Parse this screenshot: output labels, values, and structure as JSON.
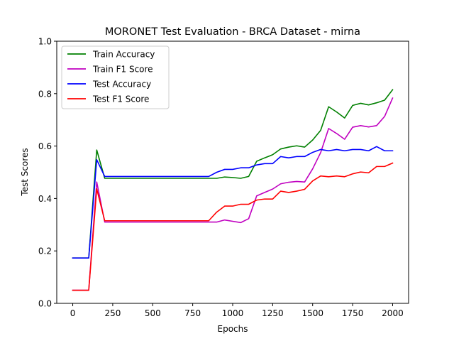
{
  "chart_data": {
    "type": "line",
    "title": "MORONET Test Evaluation - BRCA Dataset - mirna",
    "xlabel": "Epochs",
    "ylabel": "Test Scores",
    "xlim": [
      -100,
      2100
    ],
    "ylim": [
      0.0,
      1.0
    ],
    "xticks": [
      0,
      250,
      500,
      750,
      1000,
      1250,
      1500,
      1750,
      2000
    ],
    "yticks": [
      0.0,
      0.2,
      0.4,
      0.6,
      0.8,
      1.0
    ],
    "xtick_labels": [
      "0",
      "250",
      "500",
      "750",
      "1000",
      "1250",
      "1500",
      "1750",
      "2000"
    ],
    "ytick_labels": [
      "0.0",
      "0.2",
      "0.4",
      "0.6",
      "0.8",
      "1.0"
    ],
    "grid": false,
    "legend_position": "top-left",
    "x": [
      0,
      50,
      100,
      150,
      200,
      250,
      300,
      350,
      400,
      450,
      500,
      550,
      600,
      650,
      700,
      750,
      800,
      850,
      900,
      950,
      1000,
      1050,
      1100,
      1150,
      1200,
      1250,
      1300,
      1350,
      1400,
      1450,
      1500,
      1550,
      1600,
      1650,
      1700,
      1750,
      1800,
      1850,
      1900,
      1950,
      2000
    ],
    "series": [
      {
        "name": "Train Accuracy",
        "color": "#008000",
        "values": [
          0.173,
          0.173,
          0.173,
          0.585,
          0.477,
          0.477,
          0.477,
          0.477,
          0.477,
          0.477,
          0.477,
          0.477,
          0.477,
          0.477,
          0.477,
          0.477,
          0.477,
          0.477,
          0.477,
          0.482,
          0.48,
          0.477,
          0.484,
          0.542,
          0.555,
          0.567,
          0.589,
          0.596,
          0.601,
          0.596,
          0.623,
          0.66,
          0.75,
          0.73,
          0.707,
          0.755,
          0.763,
          0.757,
          0.765,
          0.775,
          0.815
        ]
      },
      {
        "name": "Train F1 Score",
        "color": "#c000c0",
        "values": [
          0.05,
          0.05,
          0.05,
          0.463,
          0.31,
          0.31,
          0.31,
          0.31,
          0.31,
          0.31,
          0.31,
          0.31,
          0.31,
          0.31,
          0.31,
          0.31,
          0.31,
          0.31,
          0.31,
          0.318,
          0.313,
          0.308,
          0.323,
          0.41,
          0.423,
          0.436,
          0.456,
          0.462,
          0.465,
          0.463,
          0.513,
          0.575,
          0.667,
          0.648,
          0.626,
          0.672,
          0.678,
          0.673,
          0.678,
          0.713,
          0.783
        ]
      },
      {
        "name": "Test Accuracy",
        "color": "#0000ff",
        "values": [
          0.173,
          0.173,
          0.173,
          0.548,
          0.484,
          0.484,
          0.484,
          0.484,
          0.484,
          0.484,
          0.484,
          0.484,
          0.484,
          0.484,
          0.484,
          0.484,
          0.484,
          0.484,
          0.5,
          0.511,
          0.511,
          0.517,
          0.517,
          0.528,
          0.533,
          0.533,
          0.56,
          0.555,
          0.56,
          0.56,
          0.576,
          0.587,
          0.582,
          0.587,
          0.582,
          0.587,
          0.587,
          0.582,
          0.598,
          0.582,
          0.582
        ]
      },
      {
        "name": "Test F1 Score",
        "color": "#ff0000",
        "values": [
          0.05,
          0.05,
          0.05,
          0.437,
          0.315,
          0.315,
          0.315,
          0.315,
          0.315,
          0.315,
          0.315,
          0.315,
          0.315,
          0.315,
          0.315,
          0.315,
          0.315,
          0.315,
          0.348,
          0.371,
          0.371,
          0.378,
          0.378,
          0.394,
          0.398,
          0.398,
          0.428,
          0.423,
          0.428,
          0.435,
          0.467,
          0.486,
          0.483,
          0.486,
          0.483,
          0.494,
          0.501,
          0.498,
          0.522,
          0.522,
          0.535
        ]
      }
    ]
  }
}
